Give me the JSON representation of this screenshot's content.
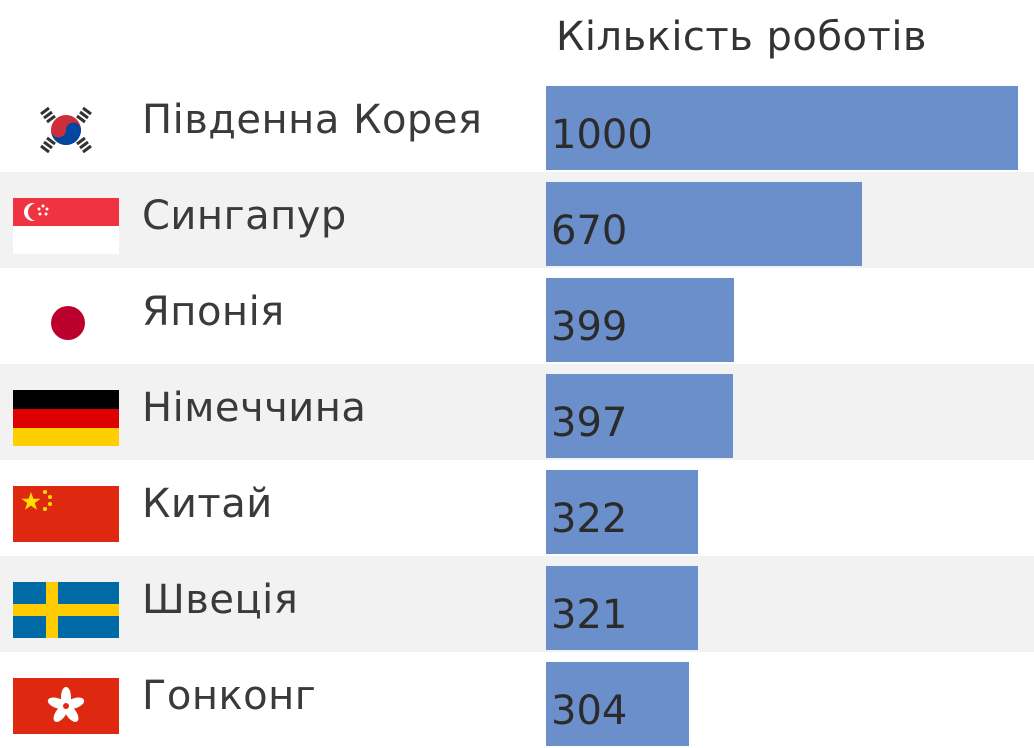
{
  "chart_data": {
    "type": "bar",
    "orientation": "horizontal",
    "title": "",
    "column_header": "Кількість роботів",
    "categories": [
      "Південна Корея",
      "Сингапур",
      "Японія",
      "Німеччина",
      "Китай",
      "Швеція",
      "Гонконг"
    ],
    "values": [
      1000,
      670,
      399,
      397,
      322,
      321,
      304
    ],
    "value_labels": [
      "1000",
      "670",
      "399",
      "397",
      "322",
      "321",
      "304"
    ],
    "xlim": [
      0,
      1000
    ],
    "grid": false,
    "legend": "none",
    "bar_color": "#6b8fcb",
    "alternate_row_color": "#f2f2f2",
    "flags": [
      "south-korea-flag-icon",
      "singapore-flag-icon",
      "japan-flag-icon",
      "germany-flag-icon",
      "china-flag-icon",
      "sweden-flag-icon",
      "hong-kong-flag-icon"
    ]
  }
}
